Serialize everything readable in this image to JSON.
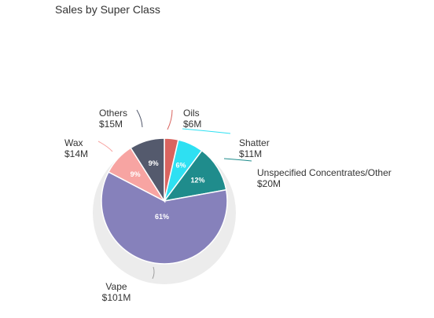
{
  "chart_data": {
    "type": "pie",
    "title": "Sales by Super Class",
    "slices": [
      {
        "name": "Oils",
        "value_label": "$6M",
        "value": 6,
        "pct_label": "",
        "color": "#d9645f"
      },
      {
        "name": "Shatter",
        "value_label": "$11M",
        "value": 11,
        "pct_label": "6%",
        "color": "#2ee0f2"
      },
      {
        "name": "Unspecified Concentrates/Other",
        "value_label": "$20M",
        "value": 20,
        "pct_label": "12%",
        "color": "#1f8c8c"
      },
      {
        "name": "Vape",
        "value_label": "$101M",
        "value": 101,
        "pct_label": "61%",
        "color": "#8681bb"
      },
      {
        "name": "Wax",
        "value_label": "$14M",
        "value": 14,
        "pct_label": "9%",
        "color": "#f7a4a2"
      },
      {
        "name": "Others",
        "value_label": "$15M",
        "value": 15,
        "pct_label": "9%",
        "color": "#545a6d"
      }
    ]
  }
}
